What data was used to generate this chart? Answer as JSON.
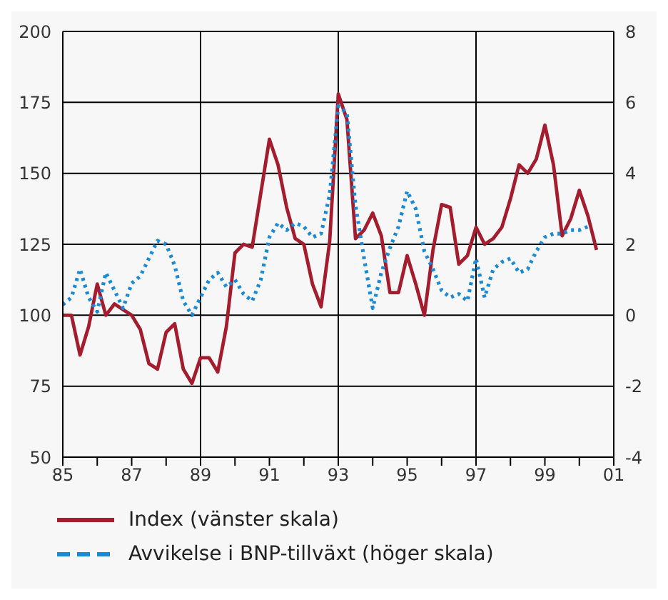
{
  "chart_data": {
    "type": "line",
    "x": [
      1985,
      1985.25,
      1985.5,
      1985.75,
      1986,
      1986.25,
      1986.5,
      1986.75,
      1987,
      1987.25,
      1987.5,
      1987.75,
      1988,
      1988.25,
      1988.5,
      1988.75,
      1989,
      1989.25,
      1989.5,
      1989.75,
      1990,
      1990.25,
      1990.5,
      1990.75,
      1991,
      1991.25,
      1991.5,
      1991.75,
      1992,
      1992.25,
      1992.5,
      1992.75,
      1993,
      1993.25,
      1993.5,
      1993.75,
      1994,
      1994.25,
      1994.5,
      1994.75,
      1995,
      1995.25,
      1995.5,
      1995.75,
      1996,
      1996.25,
      1996.5,
      1996.75,
      1997,
      1997.25,
      1997.5,
      1997.75,
      1998,
      1998.25,
      1998.5,
      1998.75,
      1999,
      1999.25,
      1999.5,
      1999.75,
      2000,
      2000.25,
      2000.5
    ],
    "series": [
      {
        "name": "Index (vänster skala)",
        "color": "#a31d2e",
        "line_style": "solid",
        "values": [
          100,
          100,
          86,
          96,
          111,
          100,
          104,
          102,
          100,
          95,
          83,
          81,
          94,
          97,
          81,
          76,
          85,
          85,
          80,
          96,
          122,
          125,
          124,
          143,
          162,
          153,
          138,
          127,
          125,
          111,
          103,
          126,
          178,
          169,
          127,
          130,
          136,
          128,
          108,
          108,
          121,
          111,
          100,
          123,
          139,
          138,
          118,
          121,
          131,
          125,
          127,
          131,
          141,
          153,
          150,
          155,
          167,
          153,
          128,
          134,
          144,
          135,
          123
        ]
      },
      {
        "name": "Avvikelse i BNP-tillväxt (höger skala)",
        "color": "#1a8ad4",
        "line_style": "dotted",
        "axis": "y2",
        "values": [
          0.3,
          0.5,
          1.3,
          0.5,
          0.1,
          1.2,
          0.7,
          0.2,
          0.9,
          1.1,
          1.6,
          2.1,
          2.0,
          1.4,
          0.4,
          0.0,
          0.5,
          1.0,
          1.2,
          0.8,
          1.0,
          0.6,
          0.4,
          1.0,
          2.2,
          2.6,
          2.4,
          2.6,
          2.5,
          2.2,
          2.3,
          3.4,
          5.9,
          5.7,
          3.1,
          1.6,
          0.2,
          1.2,
          1.9,
          2.5,
          3.5,
          3.0,
          1.8,
          1.3,
          0.7,
          0.5,
          0.6,
          0.4,
          1.6,
          0.5,
          1.3,
          1.5,
          1.6,
          1.2,
          1.3,
          1.8,
          2.2,
          2.3,
          2.3,
          2.4,
          2.4,
          2.5,
          null
        ]
      }
    ],
    "xlim": [
      1985,
      2001
    ],
    "xticks": [
      {
        "value": 1985,
        "label": "85"
      },
      {
        "value": 1986,
        "label": null
      },
      {
        "value": 1987,
        "label": "87"
      },
      {
        "value": 1988,
        "label": null
      },
      {
        "value": 1989,
        "label": "89"
      },
      {
        "value": 1990,
        "label": null
      },
      {
        "value": 1991,
        "label": "91"
      },
      {
        "value": 1992,
        "label": null
      },
      {
        "value": 1993,
        "label": "93"
      },
      {
        "value": 1994,
        "label": null
      },
      {
        "value": 1995,
        "label": "95"
      },
      {
        "value": 1996,
        "label": null
      },
      {
        "value": 1997,
        "label": "97"
      },
      {
        "value": 1998,
        "label": null
      },
      {
        "value": 1999,
        "label": "99"
      },
      {
        "value": 2000,
        "label": null
      },
      {
        "value": 2001,
        "label": "01"
      }
    ],
    "ylim": [
      50,
      200
    ],
    "yticks": [
      50,
      75,
      100,
      125,
      150,
      175,
      200
    ],
    "y2lim": [
      -4,
      8
    ],
    "y2ticks": [
      -4,
      -2,
      0,
      2,
      4,
      6,
      8
    ],
    "ref_lines": [
      {
        "axis": "x",
        "value": 1989,
        "color": "#000000"
      },
      {
        "axis": "x",
        "value": 1993,
        "color": "#000000"
      },
      {
        "axis": "x",
        "value": 1997,
        "color": "#000000"
      }
    ],
    "grid": "y",
    "legend": "bottom",
    "marker": "none"
  }
}
